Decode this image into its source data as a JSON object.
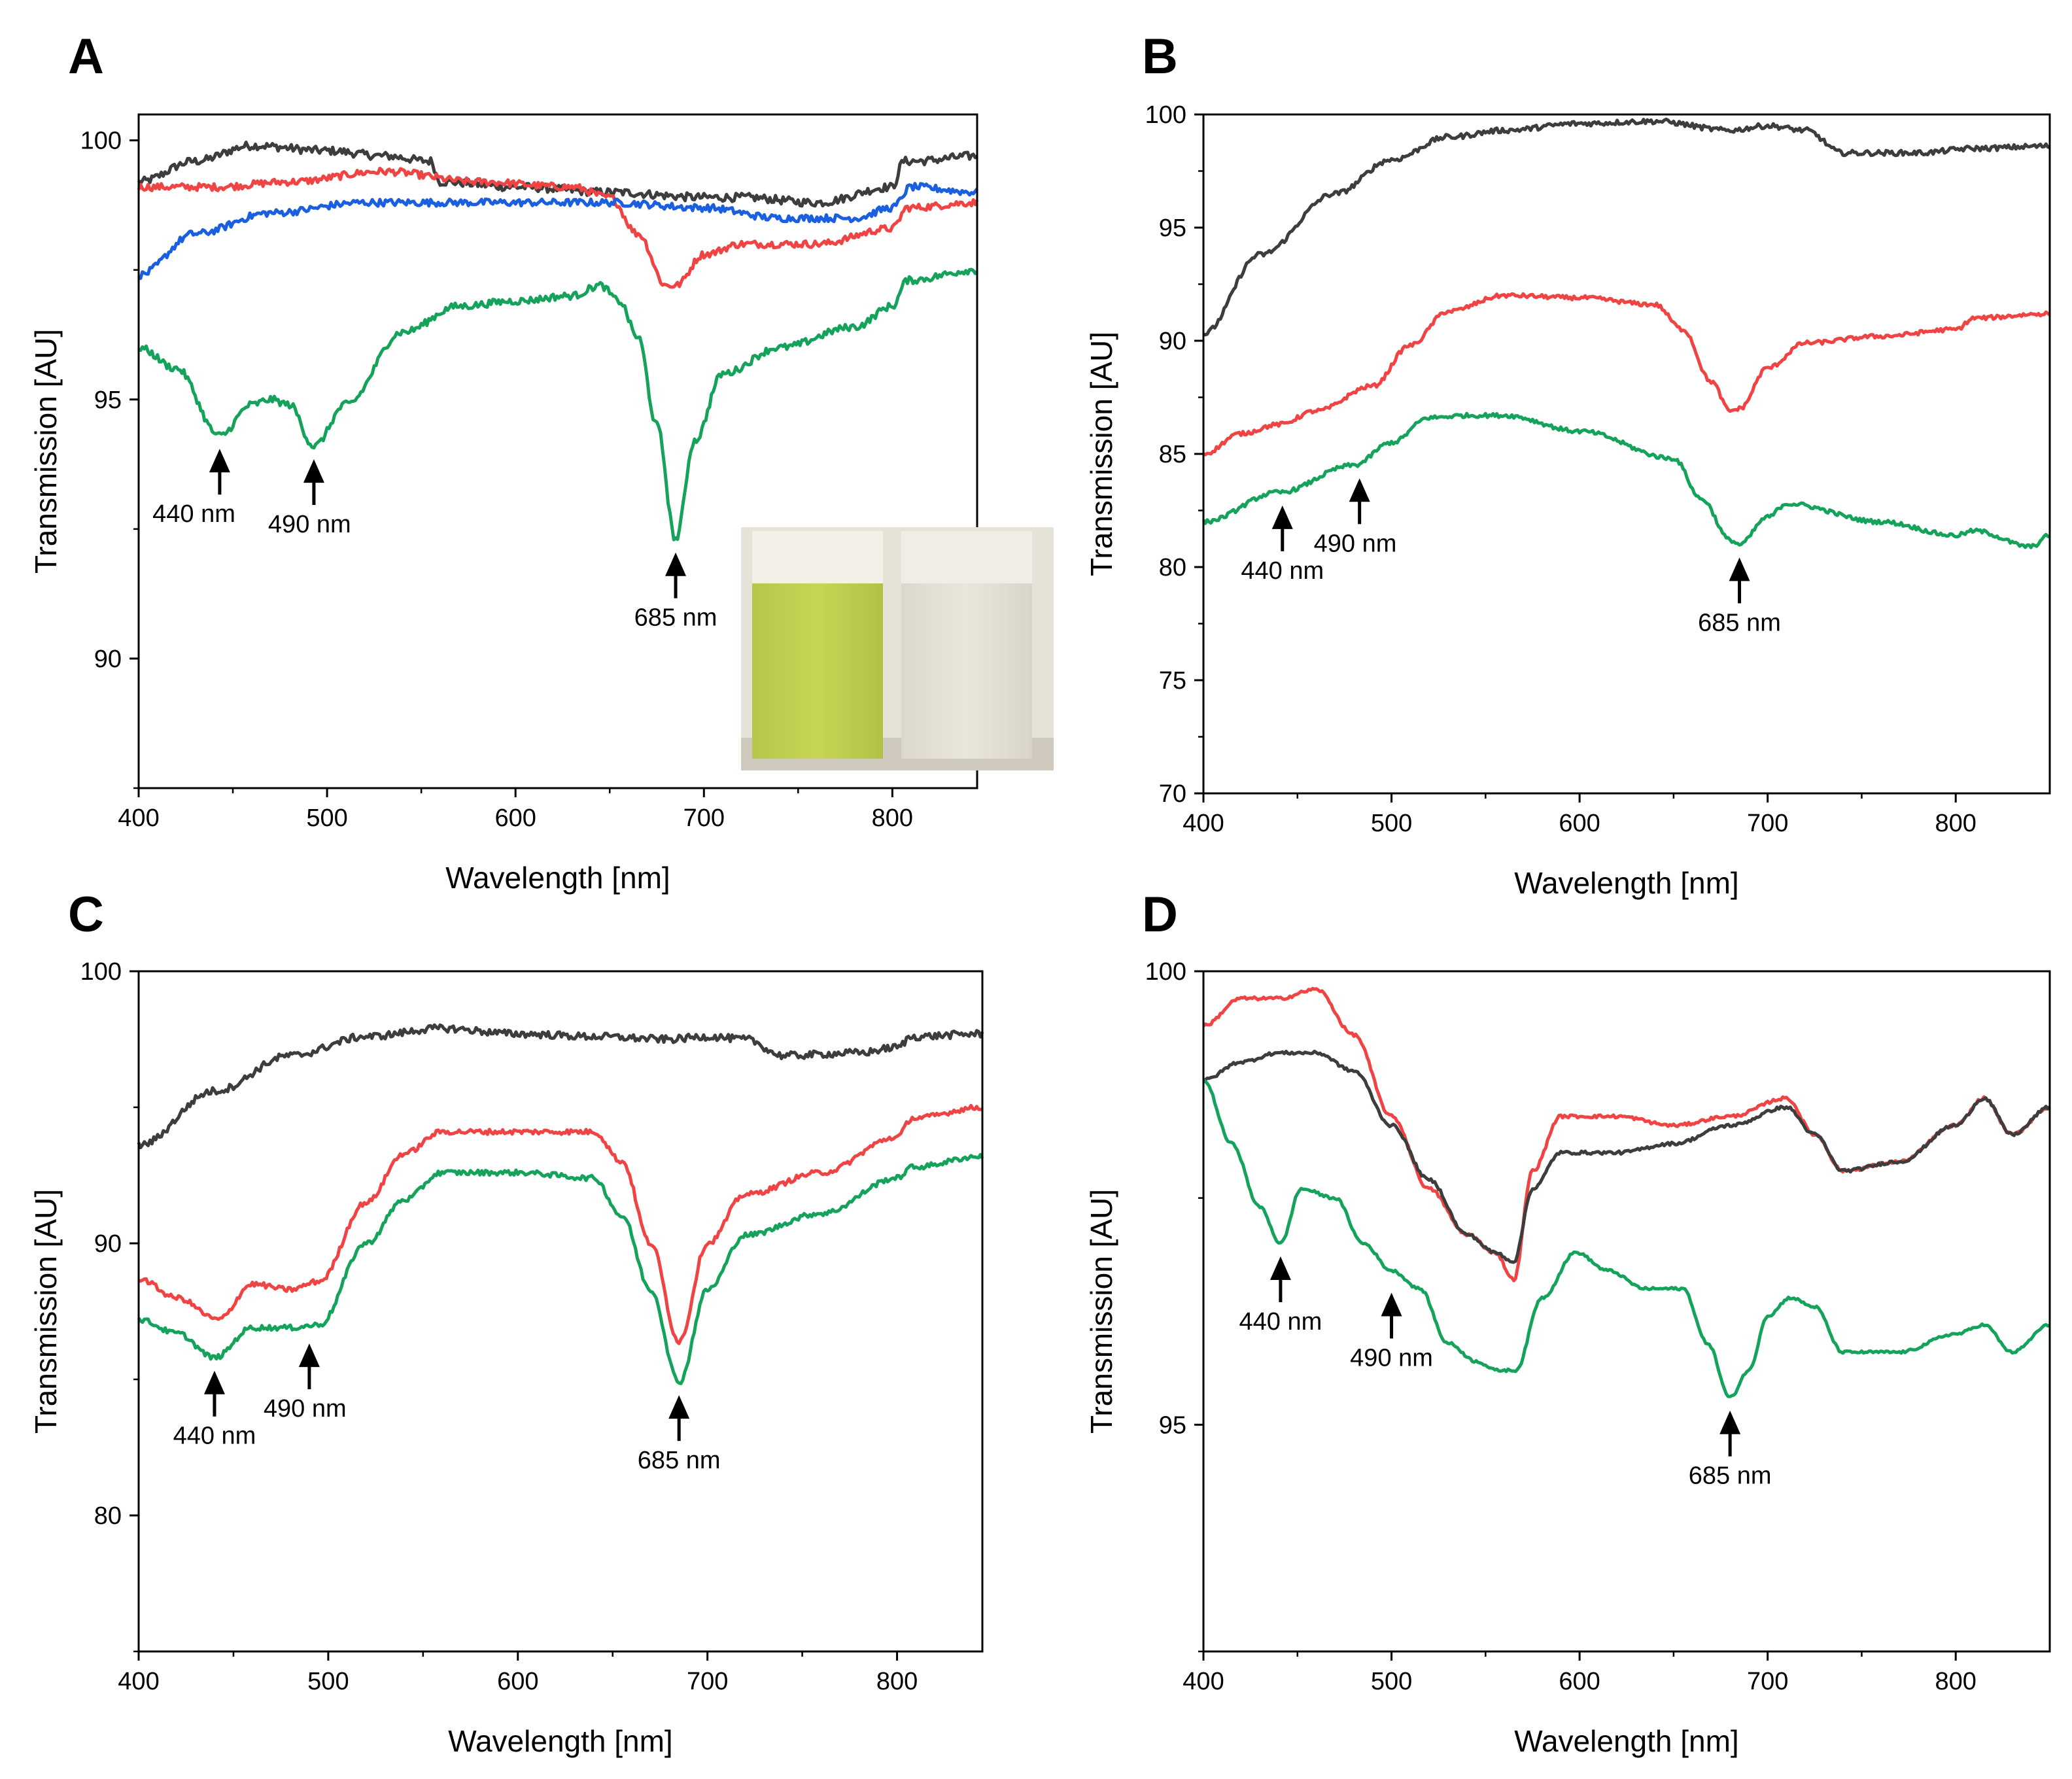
{
  "figure": {
    "colors": {
      "black": "#3d3d3d",
      "red": "#f04444",
      "blue": "#1a5fe0",
      "green": "#15a35c"
    }
  },
  "chart_data": [
    {
      "panel": "A",
      "type": "line",
      "xlabel": "Wavelength [nm]",
      "ylabel": "Transmission [AU]",
      "xlim": [
        400,
        845
      ],
      "ylim": [
        87.5,
        100.5
      ],
      "xticks": [
        "400",
        "500",
        "600",
        "700",
        "800"
      ],
      "yticks": [
        "90",
        "95",
        "100"
      ],
      "annotations": [
        {
          "label": "440 nm",
          "x": 443,
          "y": 94.3,
          "text_side": "left"
        },
        {
          "label": "490 nm",
          "x": 493,
          "y": 94.1,
          "text_side": "right"
        },
        {
          "label": "685 nm",
          "x": 685,
          "y": 92.3,
          "text_side": "center"
        }
      ],
      "inset": {
        "type": "photo",
        "content": "two cuvettes: green algal suspension (left) and pale culture medium (right)"
      },
      "series": [
        {
          "color": "black",
          "noise": 0.08,
          "x": [
            400,
            430,
            460,
            500,
            530,
            555,
            560,
            600,
            650,
            700,
            720,
            760,
            800,
            806,
            812,
            845
          ],
          "y": [
            99.2,
            99.6,
            99.9,
            99.8,
            99.7,
            99.6,
            99.2,
            99.1,
            99.0,
            98.9,
            98.9,
            98.8,
            99.1,
            99.6,
            99.6,
            99.7
          ]
        },
        {
          "color": "red",
          "noise": 0.07,
          "x": [
            400,
            440,
            480,
            530,
            580,
            630,
            650,
            665,
            680,
            685,
            700,
            720,
            760,
            800,
            808,
            845
          ],
          "y": [
            99.1,
            99.1,
            99.2,
            99.4,
            99.2,
            99.1,
            98.9,
            98.2,
            97.2,
            97.2,
            97.8,
            98.0,
            98.0,
            98.3,
            98.7,
            98.8
          ]
        },
        {
          "color": "blue",
          "noise": 0.07,
          "x": [
            400,
            430,
            470,
            520,
            560,
            600,
            650,
            700,
            740,
            780,
            800,
            810,
            845
          ],
          "y": [
            97.4,
            98.2,
            98.6,
            98.8,
            98.8,
            98.8,
            98.8,
            98.7,
            98.5,
            98.5,
            98.7,
            99.1,
            99.0
          ]
        },
        {
          "color": "green",
          "noise": 0.07,
          "x": [
            400,
            420,
            443,
            460,
            470,
            480,
            493,
            510,
            540,
            570,
            600,
            630,
            645,
            655,
            665,
            675,
            685,
            695,
            710,
            740,
            780,
            800,
            808,
            845
          ],
          "y": [
            96.0,
            95.6,
            94.3,
            94.9,
            95.0,
            94.9,
            94.1,
            94.9,
            96.3,
            96.8,
            96.9,
            97.0,
            97.2,
            96.9,
            96.2,
            94.5,
            92.3,
            94.2,
            95.5,
            96.0,
            96.4,
            96.8,
            97.3,
            97.5
          ]
        }
      ]
    },
    {
      "panel": "B",
      "type": "line",
      "xlabel": "Wavelength [nm]",
      "ylabel": "Transmission [AU]",
      "xlim": [
        400,
        850
      ],
      "ylim": [
        70,
        100
      ],
      "xticks": [
        "400",
        "500",
        "600",
        "700",
        "800"
      ],
      "yticks": [
        "70",
        "75",
        "80",
        "85",
        "90",
        "95",
        "100"
      ],
      "annotations": [
        {
          "label": "440 nm",
          "x": 442,
          "y": 83.3,
          "text_side": "center"
        },
        {
          "label": "490 nm",
          "x": 483,
          "y": 84.5,
          "text_side": "right"
        },
        {
          "label": "685 nm",
          "x": 685,
          "y": 81.0,
          "text_side": "center"
        }
      ],
      "series": [
        {
          "color": "black",
          "noise": 0.05,
          "x": [
            400,
            430,
            470,
            500,
            530,
            560,
            600,
            640,
            680,
            700,
            720,
            740,
            780,
            810,
            850
          ],
          "y": [
            90.3,
            93.8,
            96.5,
            98.0,
            99.0,
            99.3,
            99.6,
            99.7,
            99.3,
            99.5,
            99.3,
            98.3,
            98.3,
            98.5,
            98.6
          ]
        },
        {
          "color": "red",
          "noise": 0.04,
          "x": [
            400,
            420,
            440,
            460,
            490,
            510,
            530,
            560,
            600,
            640,
            655,
            670,
            680,
            685,
            700,
            720,
            760,
            800,
            810,
            850
          ],
          "y": [
            85.0,
            85.9,
            86.3,
            86.9,
            88.0,
            89.8,
            91.3,
            92.0,
            91.9,
            91.6,
            90.5,
            88.2,
            86.9,
            87.0,
            88.8,
            89.9,
            90.2,
            90.5,
            91.0,
            91.2
          ]
        },
        {
          "color": "green",
          "noise": 0.04,
          "x": [
            400,
            440,
            480,
            500,
            520,
            540,
            560,
            600,
            650,
            665,
            680,
            685,
            700,
            710,
            760,
            800,
            810,
            840,
            850
          ],
          "y": [
            82.0,
            83.3,
            84.5,
            85.5,
            86.6,
            86.7,
            86.7,
            86.0,
            84.8,
            83.0,
            81.2,
            81.0,
            82.2,
            82.8,
            82.0,
            81.4,
            81.6,
            80.9,
            81.4
          ]
        }
      ]
    },
    {
      "panel": "C",
      "type": "line",
      "xlabel": "Wavelength [nm]",
      "ylabel": "Transmission [AU]",
      "xlim": [
        400,
        845
      ],
      "ylim": [
        75,
        100
      ],
      "xticks": [
        "400",
        "500",
        "600",
        "700",
        "800"
      ],
      "yticks": [
        "80",
        "90",
        "100"
      ],
      "annotations": [
        {
          "label": "440 nm",
          "x": 440,
          "y": 85.8,
          "text_side": "center"
        },
        {
          "label": "490 nm",
          "x": 490,
          "y": 86.8,
          "text_side": "right"
        },
        {
          "label": "685 nm",
          "x": 685,
          "y": 84.9,
          "text_side": "center"
        }
      ],
      "series": [
        {
          "color": "black",
          "noise": 0.07,
          "x": [
            400,
            440,
            480,
            520,
            560,
            600,
            640,
            680,
            700,
            720,
            740,
            780,
            800,
            808,
            845
          ],
          "y": [
            93.6,
            95.6,
            96.9,
            97.6,
            97.9,
            97.7,
            97.6,
            97.5,
            97.6,
            97.5,
            96.9,
            97.0,
            97.2,
            97.6,
            97.7
          ]
        },
        {
          "color": "red",
          "noise": 0.05,
          "x": [
            400,
            420,
            442,
            460,
            480,
            495,
            520,
            540,
            560,
            600,
            640,
            655,
            670,
            685,
            700,
            720,
            760,
            800,
            808,
            845
          ],
          "y": [
            88.7,
            88.0,
            87.2,
            88.5,
            88.3,
            88.6,
            91.5,
            93.3,
            94.1,
            94.1,
            94.1,
            93.0,
            90.0,
            86.4,
            90.0,
            91.8,
            92.6,
            93.9,
            94.6,
            95.0
          ]
        },
        {
          "color": "green",
          "noise": 0.05,
          "x": [
            400,
            420,
            440,
            460,
            480,
            495,
            520,
            540,
            560,
            600,
            640,
            655,
            670,
            685,
            700,
            720,
            760,
            800,
            808,
            845
          ],
          "y": [
            87.2,
            86.7,
            85.8,
            86.9,
            86.9,
            87.0,
            90.0,
            91.6,
            92.6,
            92.6,
            92.4,
            91.0,
            88.3,
            84.9,
            88.3,
            90.3,
            91.1,
            92.4,
            92.8,
            93.2
          ]
        }
      ]
    },
    {
      "panel": "D",
      "type": "line",
      "xlabel": "Wavelength [nm]",
      "ylabel": "Transmission [AU]",
      "xlim": [
        400,
        850
      ],
      "ylim": [
        92.5,
        100
      ],
      "xticks": [
        "400",
        "500",
        "600",
        "700",
        "800"
      ],
      "yticks": [
        "95",
        "100"
      ],
      "annotations": [
        {
          "label": "440 nm",
          "x": 441,
          "y": 97.0,
          "text_side": "center"
        },
        {
          "label": "490 nm",
          "x": 500,
          "y": 96.6,
          "text_side": "center"
        },
        {
          "label": "685 nm",
          "x": 680,
          "y": 95.3,
          "text_side": "center"
        }
      ],
      "series": [
        {
          "color": "red",
          "noise": 0.03,
          "x": [
            400,
            420,
            440,
            460,
            480,
            500,
            520,
            540,
            555,
            565,
            575,
            590,
            620,
            650,
            680,
            710,
            725,
            740,
            770,
            800,
            815,
            830,
            850
          ],
          "y": [
            99.4,
            99.7,
            99.7,
            99.8,
            99.3,
            98.4,
            97.6,
            97.1,
            96.9,
            96.6,
            97.8,
            98.4,
            98.4,
            98.3,
            98.4,
            98.6,
            98.2,
            97.8,
            97.9,
            98.3,
            98.6,
            98.2,
            98.5
          ]
        },
        {
          "color": "black",
          "noise": 0.03,
          "x": [
            400,
            420,
            440,
            460,
            480,
            500,
            520,
            540,
            555,
            565,
            575,
            590,
            620,
            650,
            680,
            710,
            725,
            740,
            770,
            800,
            815,
            830,
            850
          ],
          "y": [
            98.8,
            99.0,
            99.1,
            99.1,
            98.9,
            98.3,
            97.7,
            97.1,
            96.9,
            96.8,
            97.6,
            98.0,
            98.0,
            98.1,
            98.3,
            98.5,
            98.2,
            97.8,
            97.9,
            98.3,
            98.6,
            98.2,
            98.5
          ]
        },
        {
          "color": "green",
          "noise": 0.025,
          "x": [
            400,
            415,
            430,
            441,
            452,
            470,
            485,
            500,
            515,
            530,
            545,
            556,
            566,
            580,
            598,
            615,
            635,
            655,
            668,
            680,
            690,
            700,
            712,
            725,
            740,
            770,
            800,
            815,
            830,
            850
          ],
          "y": [
            98.8,
            98.1,
            97.4,
            97.0,
            97.6,
            97.5,
            97.0,
            96.7,
            96.5,
            95.9,
            95.7,
            95.6,
            95.6,
            96.4,
            96.9,
            96.7,
            96.5,
            96.5,
            95.9,
            95.3,
            95.6,
            96.2,
            96.4,
            96.3,
            95.8,
            95.8,
            96.0,
            96.1,
            95.8,
            96.1
          ]
        }
      ]
    }
  ],
  "panels": {
    "a": {
      "letter": "A",
      "xlabel": "Wavelength [nm]",
      "ylabel": "Transmission [AU]"
    },
    "b": {
      "letter": "B",
      "xlabel": "Wavelength [nm]",
      "ylabel": "Transmission [AU]"
    },
    "c": {
      "letter": "C",
      "xlabel": "Wavelength [nm]",
      "ylabel": "Transmission [AU]"
    },
    "d": {
      "letter": "D",
      "xlabel": "Wavelength [nm]",
      "ylabel": "Transmission [AU]"
    }
  }
}
